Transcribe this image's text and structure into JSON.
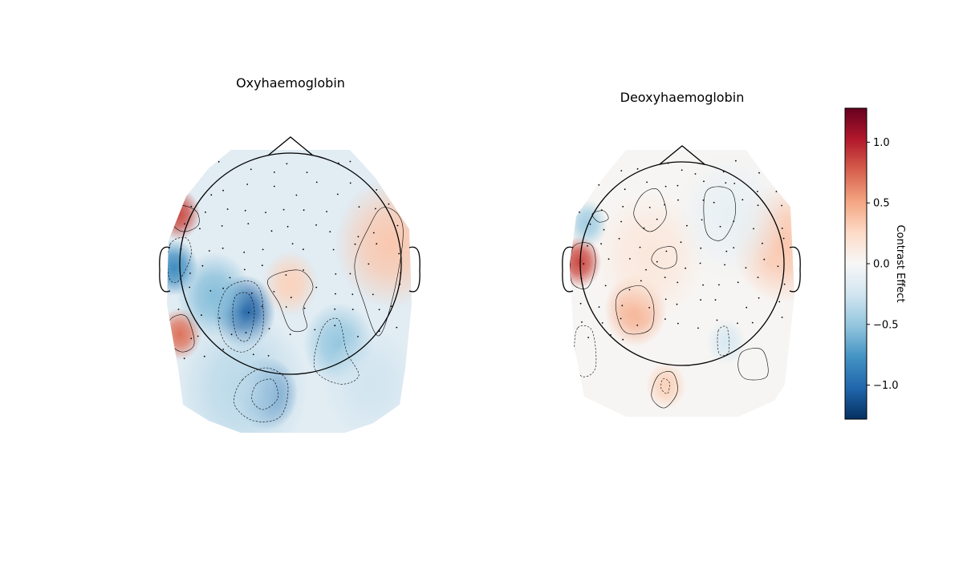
{
  "chart_data": [
    {
      "type": "heatmap",
      "subtype": "topomap",
      "title": "Oxyhaemoglobin",
      "value_label": "Contrast Effect",
      "colormap": "RdBu_r",
      "vlim": [
        -1.28,
        1.28
      ],
      "sensor_count": 98,
      "extrema": [
        {
          "region": "left-frontal",
          "value": 0.9
        },
        {
          "region": "left-temporal",
          "value": -0.85
        },
        {
          "region": "left-temporal-posterior",
          "value": 0.75
        },
        {
          "region": "central-left",
          "value": -1.15
        },
        {
          "region": "occipital",
          "value": -1.1
        },
        {
          "region": "central-right",
          "value": 0.1
        },
        {
          "region": "right-temporal",
          "value": 0.3
        },
        {
          "region": "occipital-right",
          "value": -0.5
        }
      ]
    },
    {
      "type": "heatmap",
      "subtype": "topomap",
      "title": "Deoxyhaemoglobin",
      "value_label": "Contrast Effect",
      "colormap": "RdBu_r",
      "vlim": [
        -1.28,
        1.28
      ],
      "sensor_count": 98,
      "extrema": [
        {
          "region": "left-temporal",
          "value": 0.85
        },
        {
          "region": "left-frontal",
          "value": -0.45
        },
        {
          "region": "central-left",
          "value": 0.45
        },
        {
          "region": "right-temporal",
          "value": 0.3
        },
        {
          "region": "occipital",
          "value": 0.3
        },
        {
          "region": "frontal",
          "value": -0.1
        }
      ]
    }
  ],
  "colorbar": {
    "label": "Contrast Effect",
    "ticks": [
      {
        "value": 1.0,
        "label": "1.0"
      },
      {
        "value": 0.5,
        "label": "0.5"
      },
      {
        "value": 0.0,
        "label": "0.0"
      },
      {
        "value": -0.5,
        "label": "−0.5"
      },
      {
        "value": -1.0,
        "label": "−1.0"
      }
    ],
    "range": [
      -1.28,
      1.28
    ],
    "colors": [
      "#053061",
      "#2166ac",
      "#4393c3",
      "#92c5de",
      "#d1e5f0",
      "#f7f7f7",
      "#fddbc7",
      "#f4a582",
      "#d6604d",
      "#b2182b",
      "#67001f"
    ]
  }
}
